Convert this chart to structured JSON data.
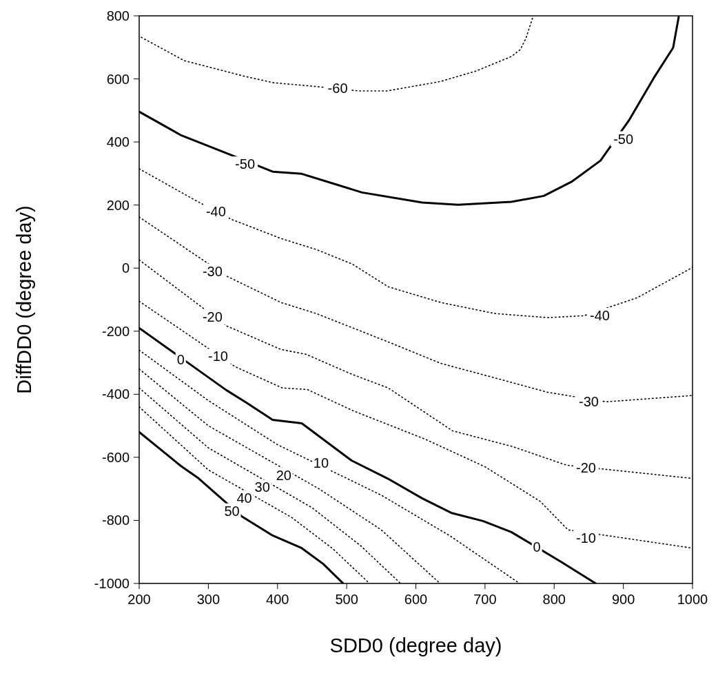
{
  "chart_data": {
    "type": "line",
    "xlabel": "SDD0 (degree day)",
    "ylabel": "DiffDD0 (degree day)",
    "xlim": [
      200,
      1000
    ],
    "xticks": [
      200,
      300,
      400,
      500,
      600,
      700,
      800,
      900,
      1000
    ],
    "ylim": [
      -1000,
      800
    ],
    "yticks": [
      -1000,
      -800,
      -600,
      -400,
      -200,
      0,
      200,
      400,
      600,
      800
    ],
    "grid": false,
    "marker": "none",
    "series": [
      {
        "color": "#000000",
        "line_style": "dotted",
        "x": [
          203,
          265,
          353,
          394,
          460,
          517,
          559,
          636,
          687,
          738,
          751,
          759,
          769
        ],
        "values": [
          732,
          658,
          608,
          588,
          575,
          562,
          562,
          592,
          625,
          671,
          693,
          728,
          795
        ]
      },
      {
        "color": "#000000",
        "line_style": "solid",
        "x": [
          200,
          260,
          330,
          393,
          435,
          522,
          609,
          661,
          738,
          785,
          826,
          867,
          908,
          944,
          972,
          980
        ],
        "values": [
          496,
          422,
          361,
          306,
          299,
          240,
          208,
          201,
          210,
          229,
          275,
          341,
          468,
          603,
          699,
          796
        ]
      },
      {
        "color": "#000000",
        "line_style": "dotted",
        "x": [
          200,
          282,
          333,
          405,
          456,
          508,
          560,
          636,
          714,
          791,
          843,
          920,
          1000
        ],
        "values": [
          315,
          214,
          155,
          94,
          59,
          13,
          -59,
          -109,
          -144,
          -157,
          -151,
          -94,
          2
        ]
      },
      {
        "color": "#000000",
        "line_style": "dotted",
        "x": [
          200,
          327,
          405,
          456,
          560,
          636,
          714,
          791,
          875,
          1000
        ],
        "values": [
          162,
          -26,
          -109,
          -144,
          -234,
          -302,
          -348,
          -394,
          -424,
          -404
        ]
      },
      {
        "color": "#000000",
        "line_style": "dotted",
        "x": [
          200,
          327,
          405,
          441,
          508,
          560,
          653,
          740,
          818,
          1000
        ],
        "values": [
          26,
          -184,
          -258,
          -273,
          -337,
          -380,
          -516,
          -566,
          -625,
          -667
        ]
      },
      {
        "color": "#000000",
        "line_style": "dotted",
        "x": [
          200,
          339,
          407,
          443,
          510,
          613,
          700,
          780,
          820,
          1000
        ],
        "values": [
          -105,
          -313,
          -380,
          -385,
          -453,
          -542,
          -630,
          -740,
          -830,
          -888
        ]
      },
      {
        "color": "#000000",
        "line_style": "solid",
        "x": [
          200,
          326,
          353,
          393,
          435,
          507,
          559,
          609,
          651,
          697,
          738,
          811,
          860
        ],
        "values": [
          -190,
          -387,
          -424,
          -481,
          -492,
          -610,
          -667,
          -730,
          -776,
          -802,
          -837,
          -933,
          -1000
        ]
      },
      {
        "color": "#000000",
        "line_style": "dotted",
        "x": [
          200,
          300,
          400,
          550,
          650,
          750
        ],
        "values": [
          -260,
          -420,
          -560,
          -720,
          -850,
          -1000
        ]
      },
      {
        "color": "#000000",
        "line_style": "dotted",
        "x": [
          200,
          300,
          460,
          550,
          635
        ],
        "values": [
          -320,
          -500,
          -700,
          -830,
          -1000
        ]
      },
      {
        "color": "#000000",
        "line_style": "dotted",
        "x": [
          200,
          300,
          450,
          520,
          578
        ],
        "values": [
          -380,
          -570,
          -760,
          -880,
          -1000
        ]
      },
      {
        "color": "#000000",
        "line_style": "dotted",
        "x": [
          200,
          300,
          420,
          480,
          533
        ],
        "values": [
          -440,
          -640,
          -790,
          -890,
          -1000
        ]
      },
      {
        "color": "#000000",
        "line_style": "solid",
        "x": [
          200,
          260,
          286,
          348,
          393,
          435,
          466,
          495
        ],
        "values": [
          -520,
          -627,
          -667,
          -787,
          -848,
          -888,
          -938,
          -1000
        ]
      }
    ],
    "annotations": [
      {
        "text": "-60",
        "x": 487,
        "y": 570
      },
      {
        "text": "-50",
        "x": 353,
        "y": 330
      },
      {
        "text": "-50",
        "x": 900,
        "y": 410
      },
      {
        "text": "-40",
        "x": 311,
        "y": 180
      },
      {
        "text": "-40",
        "x": 866,
        "y": -150
      },
      {
        "text": "-30",
        "x": 306,
        "y": -10
      },
      {
        "text": "-30",
        "x": 850,
        "y": -424
      },
      {
        "text": "-20",
        "x": 306,
        "y": -155
      },
      {
        "text": "-20",
        "x": 846,
        "y": -632
      },
      {
        "text": "-10",
        "x": 314,
        "y": -280
      },
      {
        "text": "-10",
        "x": 846,
        "y": -855
      },
      {
        "text": "0",
        "x": 260,
        "y": -291
      },
      {
        "text": "0",
        "x": 775,
        "y": -885
      },
      {
        "text": "10",
        "x": 463,
        "y": -617
      },
      {
        "text": "20",
        "x": 409,
        "y": -656
      },
      {
        "text": "30",
        "x": 378,
        "y": -695
      },
      {
        "text": "40",
        "x": 352,
        "y": -730
      },
      {
        "text": "50",
        "x": 334,
        "y": -770
      }
    ]
  }
}
